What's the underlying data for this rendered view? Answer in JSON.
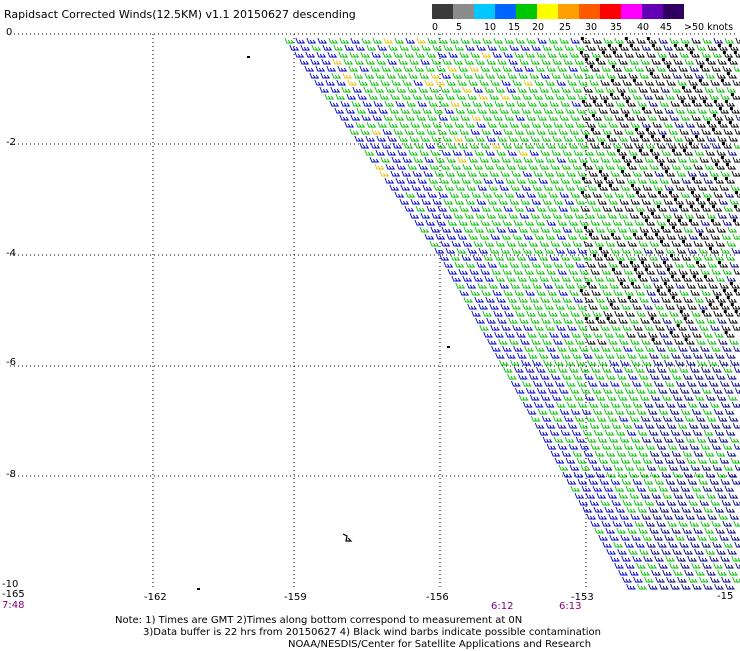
{
  "title": "Rapidsact Corrected Winds(12.5KM) v1.1 20150627 descending",
  "legend": {
    "labels": [
      "0",
      "5",
      "10",
      "15",
      "20",
      "25",
      "30",
      "35",
      "40",
      "45",
      ">50 knots"
    ],
    "colors": [
      "#3a3a3a",
      "#8c8c8c",
      "#00c8ff",
      "#0064ff",
      "#00c800",
      "#ffff00",
      "#ffa000",
      "#ff5a00",
      "#ff0000",
      "#ff00ff",
      "#6400b4",
      "#300060"
    ]
  },
  "axes": {
    "y_ticks": [
      "0",
      "-2",
      "-4",
      "-6",
      "-8",
      "-10"
    ],
    "x_ticks": [
      "-165",
      "-162",
      "-159",
      "-156",
      "-153",
      "-15"
    ]
  },
  "times": [
    "7:48",
    "6:12",
    "6:13"
  ],
  "notes": [
    "Note: 1) Times are GMT 2)Times along bottom correspond to measurement at 0N",
    "3)Data buffer is 22 hrs from 20150627 4) Black wind barbs indicate possible contamination",
    "NOAA/NESDIS/Center for Satellite Applications and Research"
  ],
  "colors": {
    "grid": "#000000",
    "barb_blue": "#0000c8",
    "barb_green": "#00c000",
    "barb_yellow": "#e8c000",
    "barb_black": "#000000",
    "barb_navy": "#000080"
  }
}
